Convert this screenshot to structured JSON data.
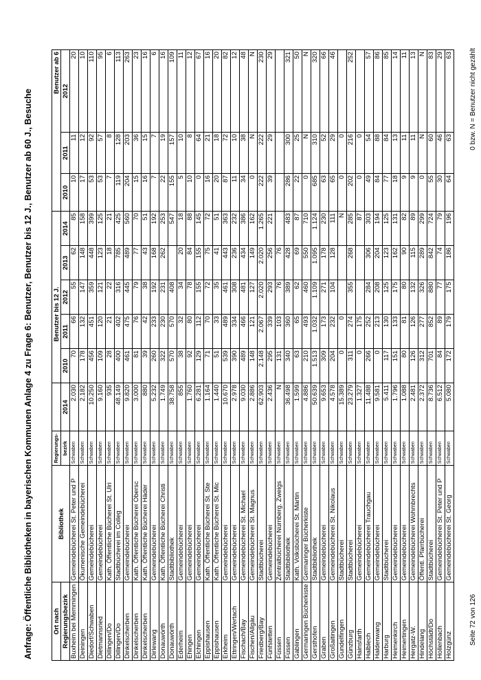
{
  "title": "Anfrage: Öffentliche Bibliotheken in bayerischen Kommunen Anlage 4 zu Frage 6: Benutzer, Benutzer bis 12 J., Benutzer ab 60 J., Besuche",
  "headers": {
    "ort_top": "Ort nach",
    "ort_bottom": "Regierungsbezirk",
    "bibliothek": "Bibliothek",
    "bezirk_top": "Regierungs-",
    "bezirk_bottom": "bezirk",
    "benutzer_2014": "2014",
    "bis12_group": "Benutzer bis 12 J.",
    "bis12_years": [
      "2010",
      "2011",
      "2012",
      "2013",
      "2014"
    ],
    "ab60_group": "Benutzer ab 6",
    "ab60_years": [
      "2010",
      "2011",
      "2012"
    ]
  },
  "rows": [
    {
      "ort": "Buxheim bei Memmingen",
      "bibliothek": "Gemeindebücherei St. Peter und P",
      "bezirk": "Schwaben",
      "benutzer_2014": "2.030",
      "bis12": [
        "70",
        "66",
        "55",
        "62",
        "85"
      ],
      "ab60": [
        "10",
        "11",
        "20"
      ]
    },
    {
      "ort": "Deiningen",
      "bibliothek": "Ökumenische Gemeindebücherei",
      "bezirk": "Schwaben",
      "benutzer_2014": "2.182",
      "bis12": [
        "178",
        "132",
        "147",
        "148",
        "158"
      ],
      "ab60": [
        "17",
        "12",
        "10"
      ]
    },
    {
      "ort": "Diedorf/Schwaben",
      "bibliothek": "Gemeindebücherei",
      "bezirk": "Schwaben",
      "benutzer_2014": "10.250",
      "bis12": [
        "456",
        "451",
        "359",
        "448",
        "399"
      ],
      "ab60": [
        "53",
        "92",
        "110"
      ]
    },
    {
      "ort": "Dietmannsried",
      "bibliothek": "Gemeindebücherei",
      "bezirk": "Schwaben",
      "benutzer_2014": "9.160",
      "bis12": [
        "109",
        "120",
        "121",
        "123",
        "125"
      ],
      "ab60": [
        "53",
        "57",
        "95"
      ]
    },
    {
      "ort": "Dillingen/Do",
      "bibliothek": "Kath. Öffentliche Bücherei St. Ulri",
      "bezirk": "Schwaben",
      "benutzer_2014": "935",
      "bis12": [
        "28",
        "21",
        "22",
        "18",
        "21"
      ],
      "ab60": [
        "7",
        "8",
        "6"
      ]
    },
    {
      "ort": "Dillingen/Do",
      "bibliothek": "Stadtbücherei im Colleg",
      "bezirk": "Schwaben",
      "benutzer_2014": "48.149",
      "bis12": [
        "400",
        "402",
        "316",
        "785",
        "425"
      ],
      "ab60": [
        "119",
        "128",
        "113"
      ]
    },
    {
      "ort": "Dinkelscherben",
      "bibliothek": "Gemeindebücherei",
      "bezirk": "Schwaben",
      "benutzer_2014": "9.820",
      "bis12": [
        "461",
        "475",
        "445",
        "489",
        "560"
      ],
      "ab60": [
        "204",
        "203",
        "263"
      ]
    },
    {
      "ort": "Dinkelscherben",
      "bibliothek": "Kath. Öffentliche Bücherei Obersc",
      "bezirk": "Schwaben",
      "benutzer_2014": "3.000",
      "bis12": [
        "81",
        "76",
        "79",
        "77",
        "70"
      ],
      "ab60": [
        "15",
        "36",
        "23"
      ]
    },
    {
      "ort": "Dinkelscherben",
      "bibliothek": "Kath. Öffentliche Bücherei Häder",
      "bezirk": "Schwaben",
      "benutzer_2014": "880",
      "bis12": [
        "39",
        "42",
        "38",
        "43",
        "51"
      ],
      "ab60": [
        "16",
        "15",
        "16"
      ]
    },
    {
      "ort": "Dirlewang",
      "bibliothek": "Gemeindebücherei",
      "bezirk": "Schwaben",
      "benutzer_2014": "5.232",
      "bis12": [
        "260",
        "233",
        "192",
        "168",
        "192"
      ],
      "ab60": [
        "7",
        "7",
        "6"
      ]
    },
    {
      "ort": "Donauwörth",
      "bibliothek": "Kath. Öffentliche Bücherei Christi",
      "bezirk": "Schwaben",
      "benutzer_2014": "1.749",
      "bis12": [
        "322",
        "230",
        "231",
        "262",
        "253"
      ],
      "ab60": [
        "22",
        "19",
        "16"
      ]
    },
    {
      "ort": "Donauwörth",
      "bibliothek": "Stadtbibliothek",
      "bezirk": "Schwaben",
      "benutzer_2014": "38.758",
      "bis12": [
        "570",
        "570",
        "408",
        "",
        "547"
      ],
      "ab60": [
        "155",
        "157",
        "109"
      ]
    },
    {
      "ort": "Ederheim",
      "bibliothek": "Gemeindebücherei",
      "bezirk": "Schwaben",
      "benutzer_2014": "855",
      "bis12": [
        "38",
        "32",
        "34",
        "20",
        "18"
      ],
      "ab60": [
        "5",
        "10",
        "11"
      ]
    },
    {
      "ort": "Ehingen",
      "bibliothek": "Gemeindebücherei",
      "bezirk": "Schwaben",
      "benutzer_2014": "1.760",
      "bis12": [
        "92",
        "80",
        "78",
        "84",
        "88"
      ],
      "ab60": [
        "10",
        "8",
        "12"
      ]
    },
    {
      "ort": "Elchingen",
      "bibliothek": "Gemeindebücherei",
      "bezirk": "Schwaben",
      "benutzer_2014": "6.281",
      "bis12": [
        "129",
        "112",
        "155",
        "155",
        "145"
      ],
      "ab60": [
        "0",
        "64",
        "67"
      ]
    },
    {
      "ort": "Eppishausen",
      "bibliothek": "Kath. Öffentliche Bücherei St. Ste",
      "bezirk": "Schwaben",
      "benutzer_2014": "1.164",
      "bis12": [
        "71",
        "70",
        "72",
        "75",
        "72"
      ],
      "ab60": [
        "16",
        "21",
        "16"
      ]
    },
    {
      "ort": "Eppishausen",
      "bibliothek": "Kath. Öffentliche Bücherei St. Mic",
      "bezirk": "Schwaben",
      "benutzer_2014": "1.440",
      "bis12": [
        "51",
        "33",
        "35",
        "41",
        "51"
      ],
      "ab60": [
        "20",
        "18",
        "20"
      ]
    },
    {
      "ort": "Erkheim",
      "bibliothek": "Gemeindebücherei",
      "bezirk": "Schwaben",
      "benutzer_2014": "10.670",
      "bis12": [
        "539",
        "489",
        "461",
        "443",
        "363"
      ],
      "ab60": [
        "87",
        "72",
        "82"
      ]
    },
    {
      "ort": "Ettringen/Wertach",
      "bibliothek": "Gemeindebücherei",
      "bezirk": "Schwaben",
      "benutzer_2014": "2.978",
      "bis12": [
        "390",
        "334",
        "308",
        "236",
        "232"
      ],
      "ab60": [
        "11",
        "10",
        "12"
      ]
    },
    {
      "ort": "Fischach/Bay",
      "bibliothek": "Gemeindebücherei St. Michael",
      "bezirk": "Schwaben",
      "benutzer_2014": "9.030",
      "bis12": [
        "489",
        "466",
        "481",
        "434",
        "386"
      ],
      "ab60": [
        "34",
        "38",
        "48"
      ]
    },
    {
      "ort": "Fischen/Allgäu",
      "bibliothek": "Gemeindebücherei St. Magnus",
      "bezirk": "Schwaben",
      "benutzer_2014": "2.886",
      "bis12": [
        "148",
        "121",
        "127",
        "149",
        "162"
      ],
      "ab60": [
        "0",
        "N",
        "N"
      ]
    },
    {
      "ort": "Friedberg/Bay",
      "bibliothek": "Stadtbücherei",
      "bezirk": "Schwaben",
      "benutzer_2014": "62.903",
      "bis12": [
        "2.148",
        "2.067",
        "2.020",
        "2.020",
        "1.265"
      ],
      "ab60": [
        "222",
        "222",
        "230"
      ]
    },
    {
      "ort": "Fünfstetten",
      "bibliothek": "Gemeindebücherei",
      "bezirk": "Schwaben",
      "benutzer_2014": "2.436",
      "bis12": [
        "295",
        "339",
        "293",
        "256",
        "221"
      ],
      "ab60": [
        "39",
        "29",
        "29"
      ]
    },
    {
      "ort": "Füssen",
      "bibliothek": "Zentralbücherei Nürnberg. Zweigs",
      "bezirk": "Schwaben",
      "benutzer_2014": "N",
      "bis12": [
        "131",
        "103",
        "76",
        "76",
        ""
      ],
      "ab60": [
        "",
        "",
        ""
      ]
    },
    {
      "ort": "Füssen",
      "bibliothek": "Stadtbibliothek",
      "bezirk": "Schwaben",
      "benutzer_2014": "36.498",
      "bis12": [
        "340",
        "360",
        "389",
        "428",
        "483"
      ],
      "ab60": [
        "286",
        "300",
        "321"
      ]
    },
    {
      "ort": "Gablingen",
      "bibliothek": "Kath. Volksbücherei St. Martin",
      "bezirk": "Schwaben",
      "benutzer_2014": "1.599",
      "bis12": [
        "63",
        "65",
        "62",
        "69",
        "87"
      ],
      "ab60": [
        "22",
        "25",
        "50"
      ]
    },
    {
      "ort": "Germaringen Bücherkiste",
      "bibliothek": "Germaringer Bücherkiste",
      "bezirk": "Schwaben",
      "benutzer_2014": "4.886",
      "bis12": [
        "210",
        "493",
        "460",
        "550",
        "710"
      ],
      "ab60": [
        "0",
        "N",
        "N"
      ]
    },
    {
      "ort": "Gersthofen",
      "bibliothek": "Stadtbibliothek",
      "bezirk": "Schwaben",
      "benutzer_2014": "50.639",
      "bis12": [
        "1.513",
        "1.032",
        "1.109",
        "1.095",
        "1.124"
      ],
      "ab60": [
        "685",
        "310",
        "320"
      ]
    },
    {
      "ort": "Graben",
      "bibliothek": "Gemeindebücherei",
      "bezirk": "Schwaben",
      "benutzer_2014": "9.653",
      "bis12": [
        "309",
        "173",
        "271",
        "178",
        "230"
      ],
      "ab60": [
        "63",
        "52",
        "66"
      ]
    },
    {
      "ort": "Großaitingen",
      "bibliothek": "Gemeindebücherei St. Nikolaus",
      "bezirk": "Schwaben",
      "benutzer_2014": "4.578",
      "bis12": [
        "204",
        "232",
        "104",
        "128",
        "111"
      ],
      "ab60": [
        "65",
        "29",
        "46"
      ]
    },
    {
      "ort": "Gundelfingen",
      "bibliothek": "Stadtbücherei",
      "bezirk": "Schwaben",
      "benutzer_2014": "15.389",
      "bis12": [
        "0",
        "0",
        "",
        "",
        "N"
      ],
      "ab60": [
        "0",
        "0",
        ""
      ]
    },
    {
      "ort": "Günzburg",
      "bibliothek": "Stadtbücherei",
      "bezirk": "Schwaben",
      "benutzer_2014": "23.279",
      "bis12": [
        "311",
        "274",
        "355",
        "268",
        "285"
      ],
      "ab60": [
        "202",
        "216",
        "252"
      ]
    },
    {
      "ort": "Hainsfarth",
      "bibliothek": "Gemeindebücherei",
      "bezirk": "Schwaben",
      "benutzer_2014": "1.327",
      "bis12": [
        "0",
        "175",
        "",
        "",
        "87"
      ],
      "ab60": [
        "0",
        "0",
        ""
      ]
    },
    {
      "ort": "Halblech",
      "bibliothek": "Gemeindebücherei Trauchgau",
      "bezirk": "Schwaben",
      "benutzer_2014": "11.488",
      "bis12": [
        "266",
        "252",
        "284",
        "306",
        "303"
      ],
      "ab60": [
        "49",
        "54",
        "57"
      ]
    },
    {
      "ort": "Haldenwang",
      "bibliothek": "Gemeindebücherei",
      "bezirk": "Schwaben",
      "benutzer_2014": "9.581",
      "bis12": [
        "0",
        "213",
        "208",
        "204",
        "194"
      ],
      "ab60": [
        "84",
        "88",
        "86"
      ]
    },
    {
      "ort": "Harburg",
      "bibliothek": "Stadtbücherei",
      "bezirk": "Schwaben",
      "benutzer_2014": "5.411",
      "bis12": [
        "117",
        "130",
        "125",
        "123",
        "125"
      ],
      "ab60": [
        "77",
        "84",
        "85"
      ]
    },
    {
      "ort": "Heimenkirch",
      "bibliothek": "Gemeindebücherei",
      "bezirk": "Schwaben",
      "benutzer_2014": "1.796",
      "bis12": [
        "151",
        "133",
        "175",
        "162",
        "131"
      ],
      "ab60": [
        "18",
        "13",
        "14"
      ]
    },
    {
      "ort": "Heimertingen",
      "bibliothek": "Gemeindebücherei",
      "bezirk": "Schwaben",
      "benutzer_2014": "1.088",
      "bis12": [
        "80",
        "81",
        "80",
        "90",
        "82"
      ],
      "ab60": [
        "9",
        "11",
        "11"
      ]
    },
    {
      "ort": "Hergatz-W.",
      "bibliothek": "Gemeindebücherei Wohmbrechts",
      "bezirk": "Schwaben",
      "benutzer_2014": "2.481",
      "bis12": [
        "126",
        "126",
        "132",
        "115",
        "89"
      ],
      "ab60": [
        "9",
        "11",
        "13"
      ]
    },
    {
      "ort": "Hindelang",
      "bibliothek": "Öffentl. Pfarrbücherei",
      "bezirk": "Schwaben",
      "benutzer_2014": "2.372",
      "bis12": [
        "312",
        "277",
        "326",
        "289",
        "299"
      ],
      "ab60": [
        "0",
        "N",
        "N"
      ]
    },
    {
      "ort": "Höchstädt/Do",
      "bibliothek": "Stadtbücherei",
      "bezirk": "Schwaben",
      "benutzer_2014": "8.736",
      "bis12": [
        "701",
        "852",
        "880",
        "842",
        "724"
      ],
      "ab60": [
        "55",
        "60",
        "83"
      ]
    },
    {
      "ort": "Hollenbach",
      "bibliothek": "Gemeindebücherei St. Peter und P",
      "bezirk": "Schwaben",
      "benutzer_2014": "6.512",
      "bis12": [
        "84",
        "89",
        "77",
        "74",
        "79"
      ],
      "ab60": [
        "30",
        "46",
        "29"
      ]
    },
    {
      "ort": "Holzgünz",
      "bibliothek": "Gemeindebücherei St. Georg",
      "bezirk": "Schwaben",
      "benutzer_2014": "5.080",
      "bis12": [
        "172",
        "179",
        "175",
        "186",
        "196"
      ],
      "ab60": [
        "64",
        "63",
        "63"
      ]
    }
  ],
  "footer": {
    "page": "Seite 72 von 126",
    "note": "0 bzw. N = Benutzer nicht gezählt"
  }
}
